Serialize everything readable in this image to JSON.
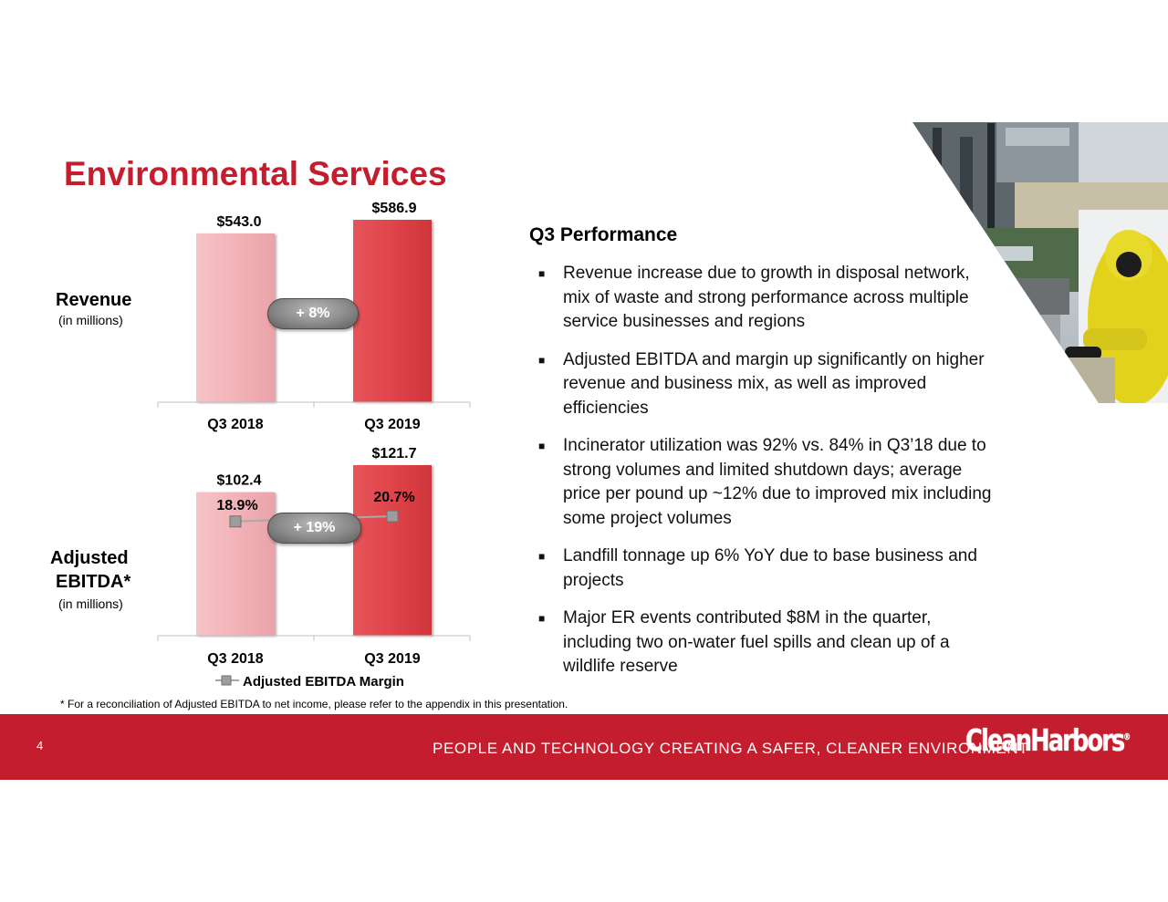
{
  "title": "Environmental Services",
  "revenue": {
    "label": "Revenue",
    "sublabel": "(in millions)",
    "growth": "+ 8%"
  },
  "ebitda": {
    "label_line1": "Adjusted",
    "label_line2": "EBITDA*",
    "sublabel": "(in millions)",
    "growth": "+ 19%",
    "legend": "Adjusted EBITDA Margin"
  },
  "chart_data": [
    {
      "type": "bar",
      "categories": [
        "Q3 2018",
        "Q3 2019"
      ],
      "values": [
        543.0,
        586.9
      ],
      "value_labels": [
        "$543.0",
        "$586.9"
      ],
      "ylabel": "Revenue (in millions)",
      "colors": [
        "#f2b3b8",
        "#df444a"
      ]
    },
    {
      "type": "bar",
      "categories": [
        "Q3 2018",
        "Q3 2019"
      ],
      "values": [
        102.4,
        121.7
      ],
      "value_labels": [
        "$102.4",
        "$121.7"
      ],
      "ylabel": "Adjusted EBITDA (in millions)",
      "colors": [
        "#f2b3b8",
        "#df444a"
      ],
      "series": [
        {
          "name": "Adjusted EBITDA Margin",
          "type": "line",
          "values": [
            18.9,
            20.7
          ],
          "value_labels": [
            "18.9%",
            "20.7%"
          ],
          "color": "#a8a8a8"
        }
      ]
    }
  ],
  "performance": {
    "heading": "Q3 Performance",
    "bullets": [
      "Revenue increase due to growth in disposal network, mix of waste and strong performance across multiple service businesses and regions",
      "Adjusted EBITDA and margin up significantly on higher revenue and business mix, as well as improved efficiencies",
      "Incinerator utilization was 92% vs. 84% in Q3’18 due to strong volumes and limited shutdown days; average price per pound up ~12% due to improved mix including some project volumes",
      "Landfill tonnage up 6% YoY due to base business and projects",
      "Major ER events contributed $8M in the quarter, including two on-water fuel spills and clean up of a wildlife reserve"
    ]
  },
  "footnote": "* For a reconciliation of Adjusted EBITDA to net income, please refer to the appendix in this presentation.",
  "footer": {
    "page_number": "4",
    "tagline": "PEOPLE AND TECHNOLOGY CREATING A SAFER, CLEANER ENVIRONMENT",
    "logo_text": "CleanHarbors",
    "logo_mark": "®",
    "color": "#c41e2e"
  }
}
